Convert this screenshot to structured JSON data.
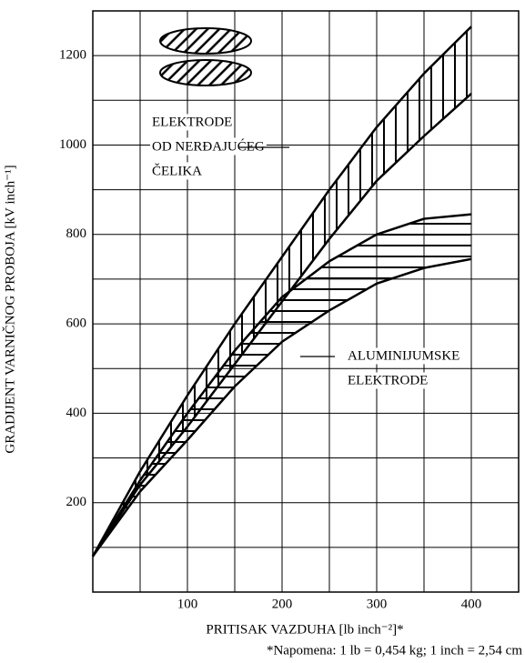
{
  "chart_data": {
    "type": "area-range",
    "x_label": "PRITISAK VAZDUHA  [lb inch⁻²]*",
    "y_label": "GRADIJENT VARNIČNOG PROBOJA  [kV inch⁻¹]",
    "note": "*Napomena: 1 lb = 0,454 kg; 1 inch = 2,54 cm",
    "xlim": [
      0,
      450
    ],
    "ylim": [
      0,
      1300
    ],
    "xticks": [
      100,
      200,
      300,
      400
    ],
    "yticks": [
      200,
      400,
      600,
      800,
      1000,
      1200
    ],
    "xgrid": [
      50,
      100,
      150,
      200,
      250,
      300,
      350,
      400
    ],
    "ygrid": [
      100,
      200,
      300,
      400,
      500,
      600,
      700,
      800,
      900,
      1000,
      1100,
      1200
    ],
    "x": [
      0,
      50,
      100,
      150,
      200,
      250,
      300,
      350,
      400
    ],
    "bands": [
      {
        "name": [
          "ELEKTRODE",
          "OD NERĐAJUĆEG",
          "ČELIKA"
        ],
        "hatch": "vertical",
        "upper": [
          80,
          270,
          440,
          600,
          750,
          900,
          1040,
          1160,
          1265
        ],
        "lower": [
          80,
          240,
          370,
          510,
          650,
          790,
          920,
          1020,
          1115
        ]
      },
      {
        "name": [
          "ALUMINIJUMSKE",
          "ELEKTRODE"
        ],
        "hatch": "horizontal",
        "upper": [
          80,
          250,
          400,
          540,
          660,
          740,
          800,
          835,
          845
        ],
        "lower": [
          80,
          225,
          340,
          460,
          560,
          630,
          690,
          725,
          745
        ]
      }
    ]
  }
}
